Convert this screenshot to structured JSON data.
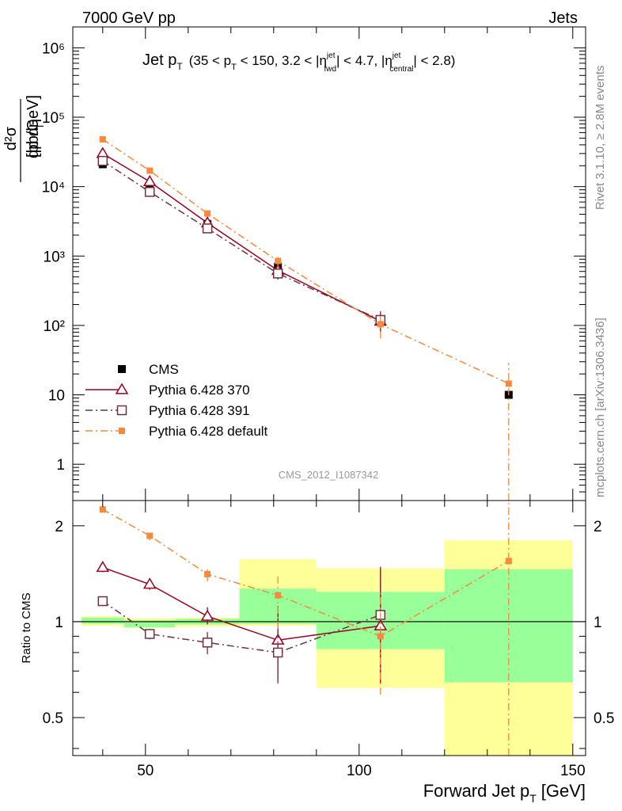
{
  "header": {
    "left": "7000 GeV pp",
    "right": "Jets"
  },
  "side_labels": {
    "rivet": "Rivet 3.1.10, ≥ 2.8M events",
    "mcplots": "mcplots.cern.ch [arXiv:1306.3436]"
  },
  "plot_title": {
    "main": "Jet p",
    "main_sub": "T",
    "range_text": "(35 < p",
    "range_sub1": "T",
    "range_text2": " < 150, 3.2 < |η",
    "fwd_sup": "jet",
    "fwd_sub": "fwd",
    "range_text3": "| < 4.7, |η",
    "cen_sup": "jet",
    "cen_sub": "central",
    "range_text4": "| < 2.8)"
  },
  "analysis_id": "CMS_2012_I1087342",
  "main_ylabel": {
    "num": "d²σ",
    "den": "dp  dη",
    "den_sub": "T",
    "unit": "[pb/GeV]"
  },
  "ratio_ylabel": "Ratio to CMS",
  "xlabel": "Forward Jet p",
  "xlabel_sub": "T",
  "xlabel_unit": "[GeV]",
  "colors": {
    "cms": "#000000",
    "p370": "#990022",
    "p391": "#703040",
    "pdef": "#f58a3c",
    "band_inner": "#99ff99",
    "band_outer": "#ffff99"
  },
  "chart_data": [
    {
      "type": "scatter",
      "panel": "main",
      "yscale": "log",
      "xlim": [
        33,
        153
      ],
      "ylim": [
        0.3,
        2000000
      ],
      "xticks": [
        50,
        100,
        150
      ],
      "yticks": [
        1,
        10,
        100,
        1000,
        10000,
        100000,
        1000000
      ],
      "ytick_labels": [
        "1",
        "10",
        "10²",
        "10³",
        "10⁴",
        "10⁵",
        "10⁶"
      ],
      "legend_position": "bottom-left",
      "series": [
        {
          "name": "CMS",
          "style": "filled-square",
          "points": [
            {
              "x": 40,
              "y": 21000
            },
            {
              "x": 51,
              "y": 9000
            },
            {
              "x": 64.5,
              "y": 2900
            },
            {
              "x": 81,
              "y": 700
            },
            {
              "x": 105,
              "y": 120
            },
            {
              "x": 135,
              "y": 10
            }
          ]
        },
        {
          "name": "Pythia 6.428 370",
          "style": "open-triangle-solid",
          "points": [
            {
              "x": 40,
              "y": 30000,
              "ylo": 28000,
              "yhi": 32000
            },
            {
              "x": 51,
              "y": 11800,
              "ylo": 11200,
              "yhi": 12400
            },
            {
              "x": 64.5,
              "y": 3000,
              "ylo": 2800,
              "yhi": 3200
            },
            {
              "x": 81,
              "y": 620,
              "ylo": 470,
              "yhi": 790
            },
            {
              "x": 105,
              "y": 115,
              "ylo": 80,
              "yhi": 150
            }
          ]
        },
        {
          "name": "Pythia 6.428 391",
          "style": "open-square-dashdot",
          "points": [
            {
              "x": 40,
              "y": 23500,
              "ylo": 22500,
              "yhi": 24500
            },
            {
              "x": 51,
              "y": 8400,
              "ylo": 8000,
              "yhi": 8800
            },
            {
              "x": 64.5,
              "y": 2500,
              "ylo": 2250,
              "yhi": 2750
            },
            {
              "x": 81,
              "y": 560,
              "ylo": 460,
              "yhi": 700
            },
            {
              "x": 105,
              "y": 120,
              "ylo": 85,
              "yhi": 160
            }
          ]
        },
        {
          "name": "Pythia 6.428 default",
          "style": "filled-small-square-dashdot",
          "points": [
            {
              "x": 40,
              "y": 48000,
              "ylo": 46000,
              "yhi": 50000
            },
            {
              "x": 51,
              "y": 17000,
              "ylo": 16000,
              "yhi": 18000
            },
            {
              "x": 64.5,
              "y": 4100,
              "ylo": 3800,
              "yhi": 4400
            },
            {
              "x": 81,
              "y": 850,
              "ylo": 650,
              "yhi": 1050
            },
            {
              "x": 105,
              "y": 104,
              "ylo": 65,
              "yhi": 145
            },
            {
              "x": 135,
              "y": 14.5,
              "ylo": 0.3,
              "yhi": 29
            }
          ]
        }
      ]
    },
    {
      "type": "scatter",
      "panel": "ratio",
      "yscale": "log",
      "xlim": [
        33,
        153
      ],
      "ylim": [
        0.38,
        2.4
      ],
      "xticks": [
        50,
        100,
        150
      ],
      "xtick_labels": [
        "50",
        "100",
        "150"
      ],
      "yticks": [
        0.5,
        1,
        2
      ],
      "ytick_labels": [
        "0.5",
        "1",
        "2"
      ],
      "bands": [
        {
          "x1": 35,
          "x2": 45,
          "inner": [
            0.985,
            1.03
          ],
          "outer": [
            0.97,
            1.04
          ]
        },
        {
          "x1": 45,
          "x2": 57,
          "inner": [
            0.96,
            1.01
          ],
          "outer": [
            0.955,
            1.025
          ]
        },
        {
          "x1": 57,
          "x2": 72,
          "inner": [
            0.98,
            1.02
          ],
          "outer": [
            0.965,
            1.03
          ]
        },
        {
          "x1": 72,
          "x2": 90,
          "inner": [
            0.985,
            1.27
          ],
          "outer": [
            0.97,
            1.57
          ]
        },
        {
          "x1": 90,
          "x2": 120,
          "inner": [
            0.82,
            1.24
          ],
          "outer": [
            0.62,
            1.47
          ]
        },
        {
          "x1": 120,
          "x2": 150,
          "inner": [
            0.645,
            1.46
          ],
          "outer": [
            0.37,
            1.8
          ]
        }
      ],
      "series": [
        {
          "name": "Pythia 6.428 370",
          "points": [
            {
              "x": 40,
              "y": 1.48,
              "ylo": 1.43,
              "yhi": 1.53
            },
            {
              "x": 51,
              "y": 1.31,
              "ylo": 1.26,
              "yhi": 1.37
            },
            {
              "x": 64.5,
              "y": 1.04,
              "ylo": 0.98,
              "yhi": 1.11
            },
            {
              "x": 81,
              "y": 0.875,
              "ylo": 0.66,
              "yhi": 1.12
            },
            {
              "x": 105,
              "y": 0.97,
              "ylo": 0.64,
              "yhi": 1.47
            }
          ]
        },
        {
          "name": "Pythia 6.428 391",
          "points": [
            {
              "x": 40,
              "y": 1.16,
              "ylo": 1.12,
              "yhi": 1.2
            },
            {
              "x": 51,
              "y": 0.915,
              "ylo": 0.88,
              "yhi": 0.95
            },
            {
              "x": 64.5,
              "y": 0.86,
              "ylo": 0.79,
              "yhi": 0.93
            },
            {
              "x": 81,
              "y": 0.8,
              "ylo": 0.64,
              "yhi": 1.0
            },
            {
              "x": 105,
              "y": 1.05,
              "ylo": 0.66,
              "yhi": 1.5
            }
          ]
        },
        {
          "name": "Pythia 6.428 default",
          "points": [
            {
              "x": 40,
              "y": 2.25,
              "ylo": 2.2,
              "yhi": 2.3
            },
            {
              "x": 51,
              "y": 1.86,
              "ylo": 1.8,
              "yhi": 1.92
            },
            {
              "x": 64.5,
              "y": 1.41,
              "ylo": 1.34,
              "yhi": 1.48
            },
            {
              "x": 81,
              "y": 1.21,
              "ylo": 0.95,
              "yhi": 1.42
            },
            {
              "x": 105,
              "y": 0.9,
              "ylo": 0.59,
              "yhi": 1.23
            },
            {
              "x": 135,
              "y": 1.55,
              "ylo": 0.38,
              "yhi": 2.4
            }
          ]
        }
      ]
    }
  ]
}
